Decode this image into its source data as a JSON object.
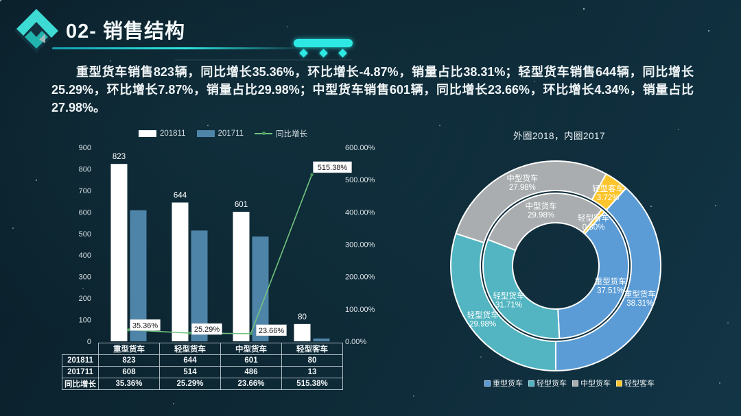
{
  "slide": {
    "title": "02- 销售结构",
    "summary": "重型货车销售823辆，同比增长35.36%，环比增长-4.87%，销量占比38.31%；轻型货车销售644辆，同比增长25.29%，环比增长7.87%，销量占比29.98%；中型货车销售601辆，同比增长23.66%，环比增长4.34%，销量占比27.98%。"
  },
  "colors": {
    "accent_cyan": "#2ee9e3",
    "bar_2018": "#ffffff",
    "bar_2017": "#4e84a8",
    "line_green": "#72c47f",
    "donut_blue": "#5b9cd6",
    "donut_teal": "#52b5c1",
    "donut_gray": "#a9adaf",
    "donut_yellow": "#fdc52c"
  },
  "chart_data": [
    {
      "type": "bar",
      "subtype": "bar+line-combo",
      "categories": [
        "重型货车",
        "轻型货车",
        "中型货车",
        "轻型客车"
      ],
      "series": [
        {
          "name": "201811",
          "kind": "bar",
          "color": "#ffffff",
          "values": [
            823,
            644,
            601,
            80
          ]
        },
        {
          "name": "201711",
          "kind": "bar",
          "color": "#4e84a8",
          "values": [
            608,
            514,
            486,
            13
          ]
        },
        {
          "name": "同比增长",
          "kind": "line",
          "axis": "right",
          "color": "#72c47f",
          "dot_color": "#4e9e5f",
          "values": [
            35.36,
            25.29,
            23.66,
            515.38
          ],
          "labels": [
            "35.36%",
            "25.29%",
            "23.66%",
            "515.38%"
          ]
        }
      ],
      "bar_value_labels": [
        "823",
        "644",
        "601",
        "80"
      ],
      "left_axis": {
        "min": 0,
        "max": 900,
        "ticks": [
          900,
          800,
          700,
          600,
          500,
          400,
          300,
          200,
          100,
          0
        ]
      },
      "right_axis": {
        "min": 0,
        "max": 600,
        "ticks": [
          "600.00%",
          "500.00%",
          "400.00%",
          "300.00%",
          "200.00%",
          "100.00%",
          "0.00%"
        ]
      },
      "legend_position": "top",
      "grid": false
    },
    {
      "type": "pie",
      "subtype": "double-ring-donut",
      "title": "外圈2018，内圈2017",
      "rotation_deg": 42.1,
      "legend_position": "bottom",
      "legend": [
        {
          "label": "重型货车",
          "color": "#5b9cd6"
        },
        {
          "label": "轻型货车",
          "color": "#52b5c1"
        },
        {
          "label": "中型货车",
          "color": "#a9adaf"
        },
        {
          "label": "轻型客车",
          "color": "#fdc52c"
        }
      ],
      "rings": [
        {
          "name": "外圈2018",
          "slices": [
            {
              "label": "重型货车",
              "pct": 38.31,
              "pct_label": "38.31%",
              "color": "#5b9cd6"
            },
            {
              "label": "轻型货车",
              "pct": 29.98,
              "pct_label": "29.98%",
              "color": "#52b5c1"
            },
            {
              "label": "中型货车",
              "pct": 27.98,
              "pct_label": "27.98%",
              "color": "#a9adaf"
            },
            {
              "label": "轻型客车",
              "pct": 3.72,
              "pct_label": "3.72%",
              "color": "#fdc52c"
            }
          ]
        },
        {
          "name": "内圈2017",
          "slices": [
            {
              "label": "重型货车",
              "pct": 37.51,
              "pct_label": "37.51%",
              "color": "#5b9cd6"
            },
            {
              "label": "轻型货车",
              "pct": 31.71,
              "pct_label": "31.71%",
              "color": "#52b5c1"
            },
            {
              "label": "中型货车",
              "pct": 29.98,
              "pct_label": "29.98%",
              "color": "#a9adaf"
            },
            {
              "label": "轻型客车",
              "pct": 0.8,
              "pct_label": "0.80%",
              "color": "#fdc52c"
            }
          ]
        }
      ]
    }
  ],
  "table": {
    "corner": "",
    "headers": [
      "重型货车",
      "轻型货车",
      "中型货车",
      "轻型客车"
    ],
    "rows": [
      {
        "label": "201811",
        "values": [
          "823",
          "644",
          "601",
          "80"
        ]
      },
      {
        "label": "201711",
        "values": [
          "608",
          "514",
          "486",
          "13"
        ]
      },
      {
        "label": "同比增长",
        "values": [
          "35.36%",
          "25.29%",
          "23.66%",
          "515.38%"
        ]
      }
    ]
  }
}
